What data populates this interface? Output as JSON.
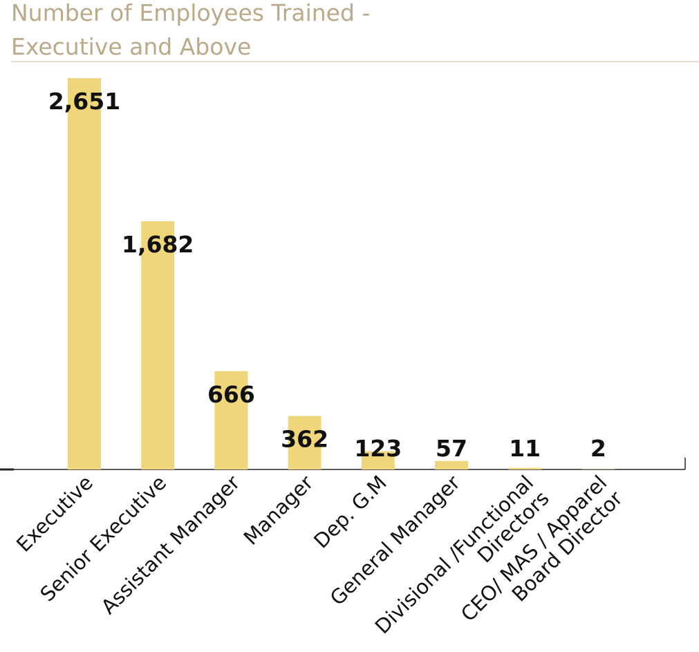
{
  "chart_data": {
    "type": "bar",
    "title": "Number of Employees Trained -",
    "subtitle": "Executive and Above",
    "categories": [
      "Executive",
      "Senior Executive",
      "Assistant Manager",
      "Manager",
      "Dep. G.M",
      "General Manager",
      "Divisional /Functional\nDirectors",
      "CEO/ MAS / Apparel\nBoard Director"
    ],
    "values": [
      2651,
      1682,
      666,
      362,
      123,
      57,
      11,
      2
    ],
    "value_labels": [
      "2,651",
      "1,682",
      "666",
      "362",
      "123",
      "57",
      "11",
      "2"
    ],
    "color": "#efd67a"
  }
}
